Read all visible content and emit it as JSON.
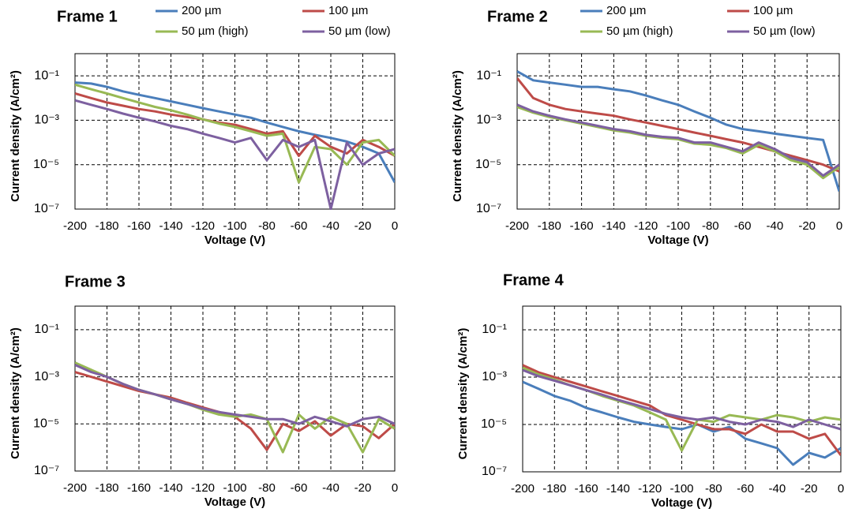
{
  "chart_data": [
    {
      "type": "line",
      "title": "Frame 1",
      "x_label": "Voltage (V)",
      "y_label": "Current density (A/cm²)",
      "log_y": true,
      "grid": true,
      "x": [
        -200,
        -190,
        -180,
        -170,
        -160,
        -150,
        -140,
        -130,
        -120,
        -110,
        -100,
        -90,
        -80,
        -70,
        -60,
        -50,
        -40,
        -30,
        -20,
        -10,
        0
      ],
      "xlim": [
        -200,
        0
      ],
      "xticks": [
        -200,
        -180,
        -160,
        -140,
        -120,
        -100,
        -80,
        -60,
        -40,
        -20,
        0
      ],
      "ylim": [
        1e-07,
        1
      ],
      "yticks": [
        {
          "value": 1e-07,
          "label": "10⁻⁷"
        },
        {
          "value": 1e-05,
          "label": "10⁻⁵"
        },
        {
          "value": 0.001,
          "label": "10⁻³"
        },
        {
          "value": 0.1,
          "label": "10⁻¹"
        }
      ],
      "series": [
        {
          "name": "200 µm",
          "color": "#4a7ebb",
          "values": [
            0.05,
            0.045,
            0.032,
            0.02,
            0.014,
            0.01,
            0.0071,
            0.005,
            0.0035,
            0.0025,
            0.0018,
            0.0013,
            0.00079,
            0.0005,
            0.00032,
            0.00022,
            0.00016,
            0.00011,
            6.3e-05,
            3.2e-05,
            1.6e-06
          ]
        },
        {
          "name": "100 µm",
          "color": "#be4b48",
          "values": [
            0.016,
            0.01,
            0.0063,
            0.0045,
            0.0032,
            0.0025,
            0.0018,
            0.0014,
            0.0011,
            0.00079,
            0.00063,
            0.0004,
            0.00025,
            0.00032,
            2.5e-05,
            0.0002,
            6.3e-05,
            3.2e-05,
            0.00013,
            6.3e-05,
            2.5e-05
          ]
        },
        {
          "name": "50 µm (high)",
          "color": "#98b954",
          "values": [
            0.04,
            0.025,
            0.016,
            0.01,
            0.0063,
            0.004,
            0.0028,
            0.0018,
            0.0011,
            0.00071,
            0.0005,
            0.00032,
            0.0002,
            0.00025,
            1.6e-06,
            6.3e-05,
            5e-05,
            1e-05,
            0.0001,
            0.00013,
            2.5e-05
          ]
        },
        {
          "name": "50 µm (low)",
          "color": "#7d60a0",
          "values": [
            0.0079,
            0.005,
            0.0032,
            0.002,
            0.0013,
            0.00089,
            0.00056,
            0.0004,
            0.00025,
            0.00016,
            0.0001,
            0.00016,
            1.6e-05,
            0.00013,
            6.3e-05,
            0.00013,
            1e-07,
            0.0001,
            1e-05,
            3.2e-05,
            5e-05
          ]
        }
      ]
    },
    {
      "type": "line",
      "title": "Frame 2",
      "x_label": "Voltage (V)",
      "y_label": "Current density (A/cm²)",
      "log_y": true,
      "grid": true,
      "x": [
        -200,
        -190,
        -180,
        -170,
        -160,
        -150,
        -140,
        -130,
        -120,
        -110,
        -100,
        -90,
        -80,
        -70,
        -60,
        -50,
        -40,
        -30,
        -20,
        -10,
        0
      ],
      "xlim": [
        -200,
        0
      ],
      "xticks": [
        -200,
        -180,
        -160,
        -140,
        -120,
        -100,
        -80,
        -60,
        -40,
        -20,
        0
      ],
      "ylim": [
        1e-07,
        1
      ],
      "yticks": [
        {
          "value": 1e-07,
          "label": "10⁻⁷"
        },
        {
          "value": 1e-05,
          "label": "10⁻⁵"
        },
        {
          "value": 0.001,
          "label": "10⁻³"
        },
        {
          "value": 0.1,
          "label": "10⁻¹"
        }
      ],
      "series": [
        {
          "name": "200 µm",
          "color": "#4a7ebb",
          "values": [
            0.16,
            0.063,
            0.05,
            0.04,
            0.032,
            0.032,
            0.025,
            0.02,
            0.013,
            0.0079,
            0.005,
            0.0025,
            0.0013,
            0.00063,
            0.0004,
            0.00032,
            0.00025,
            0.0002,
            0.00016,
            0.00013,
            6.3e-07
          ]
        },
        {
          "name": "100 µm",
          "color": "#be4b48",
          "values": [
            0.079,
            0.01,
            0.005,
            0.0032,
            0.0025,
            0.002,
            0.0016,
            0.0011,
            0.00079,
            0.00056,
            0.0004,
            0.00028,
            0.0002,
            0.00014,
            0.0001,
            6.3e-05,
            4e-05,
            2.5e-05,
            1.6e-05,
            1e-05,
            5e-06
          ]
        },
        {
          "name": "50 µm (high)",
          "color": "#98b954",
          "values": [
            0.004,
            0.0022,
            0.0014,
            0.001,
            0.00071,
            0.0005,
            0.00035,
            0.00028,
            0.0002,
            0.00016,
            0.00014,
            8.9e-05,
            7.9e-05,
            5.6e-05,
            3.2e-05,
            7.9e-05,
            4e-05,
            1.6e-05,
            1e-05,
            2.5e-06,
            7.9e-06
          ]
        },
        {
          "name": "50 µm (low)",
          "color": "#7d60a0",
          "values": [
            0.005,
            0.0025,
            0.0016,
            0.0011,
            0.00079,
            0.00056,
            0.0004,
            0.00032,
            0.00022,
            0.00018,
            0.00016,
            0.0001,
            0.0001,
            6.3e-05,
            4e-05,
            0.0001,
            5e-05,
            2e-05,
            1.3e-05,
            3.2e-06,
            1e-05
          ]
        }
      ]
    },
    {
      "type": "line",
      "title": "Frame 3",
      "x_label": "Voltage (V)",
      "y_label": "Current density (A/cm²)",
      "log_y": true,
      "grid": true,
      "x": [
        -200,
        -190,
        -180,
        -170,
        -160,
        -150,
        -140,
        -130,
        -120,
        -110,
        -100,
        -90,
        -80,
        -70,
        -60,
        -50,
        -40,
        -30,
        -20,
        -10,
        0
      ],
      "xlim": [
        -200,
        0
      ],
      "xticks": [
        -200,
        -180,
        -160,
        -140,
        -120,
        -100,
        -80,
        -60,
        -40,
        -20,
        0
      ],
      "ylim": [
        1e-07,
        1
      ],
      "yticks": [
        {
          "value": 1e-07,
          "label": "10⁻⁷"
        },
        {
          "value": 1e-05,
          "label": "10⁻⁵"
        },
        {
          "value": 0.001,
          "label": "10⁻³"
        },
        {
          "value": 0.1,
          "label": "10⁻¹"
        }
      ],
      "series": [
        {
          "color": "#be4b48",
          "values": [
            0.0016,
            0.001,
            0.00063,
            0.0004,
            0.00025,
            0.00018,
            0.00013,
            7.9e-05,
            5e-05,
            3.2e-05,
            2e-05,
            6.3e-06,
            7.9e-07,
            1e-05,
            5e-06,
            1.3e-05,
            3.2e-06,
            1e-05,
            7.9e-06,
            2.5e-06,
            1e-05
          ]
        },
        {
          "color": "#98b954",
          "values": [
            0.004,
            0.002,
            0.001,
            0.0005,
            0.00028,
            0.00018,
            0.00011,
            7.1e-05,
            4e-05,
            2.5e-05,
            2e-05,
            2.5e-05,
            1.6e-05,
            6.3e-07,
            2.5e-05,
            6.3e-06,
            2e-05,
            1e-05,
            6.3e-07,
            1.6e-05,
            6.3e-06
          ]
        },
        {
          "color": "#7d60a0",
          "values": [
            0.0032,
            0.0016,
            0.001,
            0.0005,
            0.00028,
            0.00018,
            0.00011,
            7.1e-05,
            4.5e-05,
            3.2e-05,
            2.5e-05,
            2e-05,
            1.6e-05,
            1.6e-05,
            1e-05,
            2e-05,
            1.3e-05,
            7.9e-06,
            1.6e-05,
            2e-05,
            1e-05
          ]
        }
      ]
    },
    {
      "type": "line",
      "title": "Frame 4",
      "x_label": "Voltage (V)",
      "y_label": "Current density (A/cm²)",
      "log_y": true,
      "grid": true,
      "x": [
        -200,
        -190,
        -180,
        -170,
        -160,
        -150,
        -140,
        -130,
        -120,
        -110,
        -100,
        -90,
        -80,
        -70,
        -60,
        -50,
        -40,
        -30,
        -20,
        -10,
        0
      ],
      "xlim": [
        -200,
        0
      ],
      "xticks": [
        -200,
        -180,
        -160,
        -140,
        -120,
        -100,
        -80,
        -60,
        -40,
        -20,
        0
      ],
      "ylim": [
        1e-07,
        1
      ],
      "yticks": [
        {
          "value": 1e-07,
          "label": "10⁻⁷"
        },
        {
          "value": 1e-05,
          "label": "10⁻⁵"
        },
        {
          "value": 0.001,
          "label": "10⁻³"
        },
        {
          "value": 0.1,
          "label": "10⁻¹"
        }
      ],
      "series": [
        {
          "color": "#4a7ebb",
          "values": [
            0.00063,
            0.00032,
            0.00016,
            0.0001,
            5e-05,
            3.2e-05,
            2e-05,
            1.3e-05,
            1e-05,
            7.9e-06,
            6.3e-06,
            1e-05,
            5e-06,
            7.9e-06,
            2.5e-06,
            1.6e-06,
            1e-06,
            2e-07,
            6.3e-07,
            4e-07,
            1e-06
          ]
        },
        {
          "color": "#be4b48",
          "values": [
            0.0032,
            0.0016,
            0.001,
            0.00063,
            0.0004,
            0.00025,
            0.00016,
            0.0001,
            6.3e-05,
            2.5e-05,
            1.6e-05,
            1e-05,
            6.3e-06,
            6.3e-06,
            4e-06,
            1e-05,
            5e-06,
            5e-06,
            2.5e-06,
            4e-06,
            5e-07
          ]
        },
        {
          "color": "#98b954",
          "values": [
            0.0025,
            0.0013,
            0.00079,
            0.00045,
            0.00028,
            0.00016,
            0.0001,
            6.3e-05,
            3.2e-05,
            1.6e-05,
            7.9e-07,
            1.6e-05,
            1.3e-05,
            2.5e-05,
            2e-05,
            1.6e-05,
            2.5e-05,
            2e-05,
            1.3e-05,
            2e-05,
            1.6e-05
          ]
        },
        {
          "color": "#7d60a0",
          "values": [
            0.002,
            0.0011,
            0.00071,
            0.00045,
            0.00028,
            0.00018,
            0.00011,
            7.1e-05,
            4.5e-05,
            2.8e-05,
            2e-05,
            1.6e-05,
            2e-05,
            1.3e-05,
            1e-05,
            1.6e-05,
            1.3e-05,
            7.9e-06,
            1.6e-05,
            1e-05,
            6.3e-06
          ]
        }
      ]
    }
  ]
}
